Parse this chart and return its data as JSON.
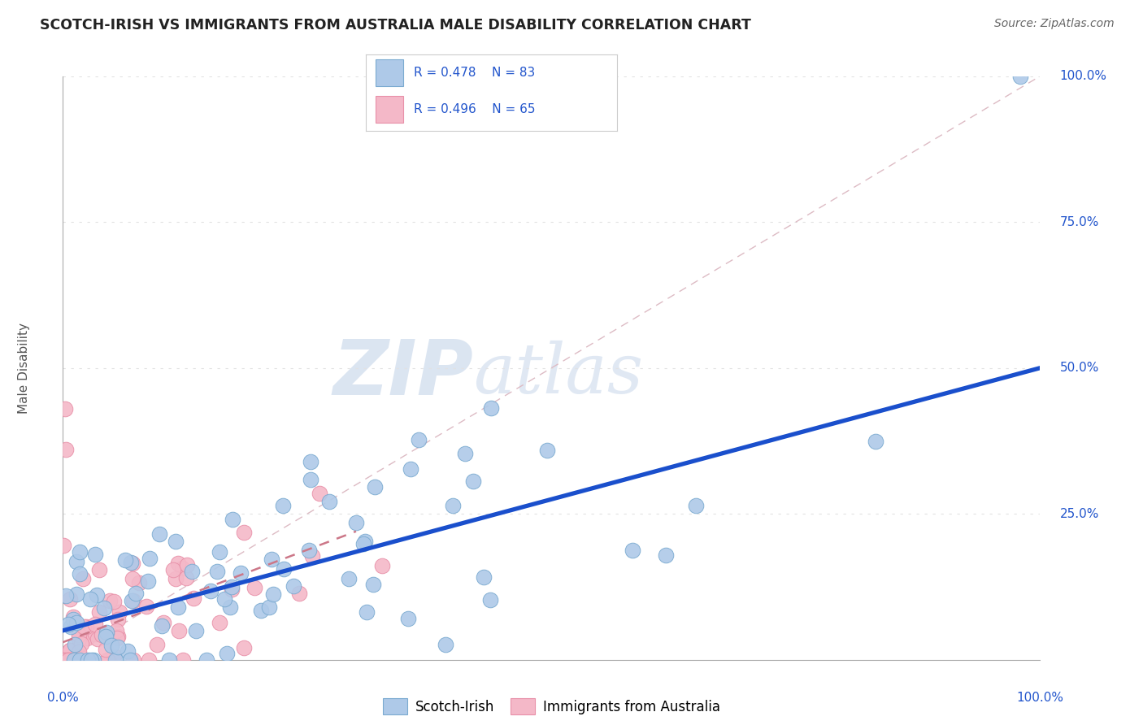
{
  "title": "SCOTCH-IRISH VS IMMIGRANTS FROM AUSTRALIA MALE DISABILITY CORRELATION CHART",
  "source": "Source: ZipAtlas.com",
  "ylabel": "Male Disability",
  "ytick_labels": [
    "25.0%",
    "50.0%",
    "75.0%",
    "100.0%"
  ],
  "ytick_vals": [
    25,
    50,
    75,
    100
  ],
  "xlim": [
    0,
    100
  ],
  "ylim": [
    0,
    100
  ],
  "r1": 0.478,
  "n1": 83,
  "r2": 0.496,
  "n2": 65,
  "color_scotch": "#aec9e8",
  "color_australia": "#f4b8c8",
  "edge_scotch": "#7aaad0",
  "edge_australia": "#e890a8",
  "line_color_scotch": "#1a4fcc",
  "line_color_australia": "#cc7788",
  "diag_color": "#e0c0c8",
  "background_color": "#ffffff",
  "scotch_label": "Scotch-Irish",
  "australia_label": "Immigrants from Australia",
  "si_line_x0": 0,
  "si_line_y0": 5,
  "si_line_x1": 100,
  "si_line_y1": 50,
  "au_line_x0": 0,
  "au_line_y0": 3,
  "au_line_x1": 30,
  "au_line_y1": 22
}
